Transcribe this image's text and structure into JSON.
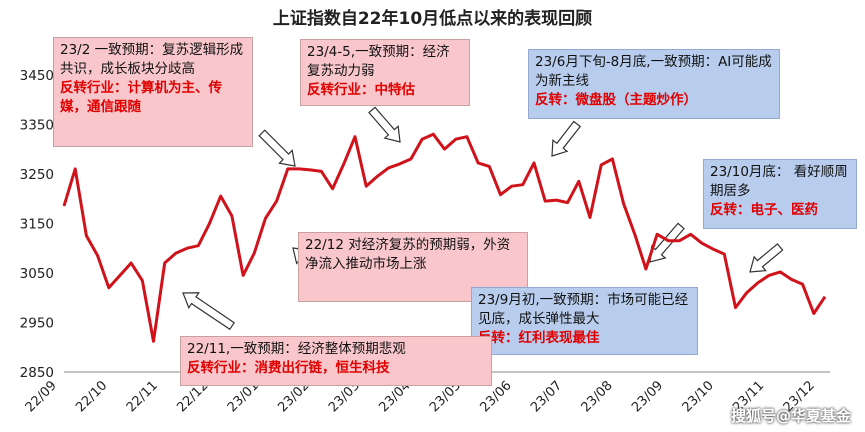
{
  "chart_data": {
    "type": "line",
    "title": "上证指数自22年10月低点以来的表现回顾",
    "ylim": [
      2850,
      3500
    ],
    "yticks": [
      2850,
      2950,
      3050,
      3150,
      3250,
      3350,
      3450
    ],
    "xticks": [
      "22/09",
      "22/10",
      "22/11",
      "22/12",
      "23/01",
      "23/02",
      "23/03",
      "23/04",
      "23/05",
      "23/06",
      "23/07",
      "23/08",
      "23/09",
      "23/10",
      "23/11",
      "23/12"
    ],
    "values": [
      3185,
      3260,
      3125,
      3085,
      3020,
      3045,
      3070,
      3035,
      2912,
      3070,
      3090,
      3100,
      3105,
      3150,
      3205,
      3165,
      3045,
      3090,
      3160,
      3195,
      3260,
      3260,
      3258,
      3255,
      3220,
      3270,
      3325,
      3225,
      3245,
      3262,
      3270,
      3280,
      3320,
      3330,
      3300,
      3320,
      3325,
      3272,
      3265,
      3208,
      3225,
      3228,
      3272,
      3195,
      3197,
      3192,
      3235,
      3162,
      3268,
      3280,
      3190,
      3128,
      3058,
      3128,
      3115,
      3115,
      3128,
      3110,
      3098,
      3088,
      2980,
      3010,
      3030,
      3045,
      3052,
      3037,
      3027,
      2968,
      3002
    ]
  },
  "annotations": [
    {
      "id": "a1",
      "text": "23/2 一致预期：复苏逻辑形成共识，成长板块分歧高",
      "highlight": "反转行业：计算机为主、传媒，通信跟随",
      "color": "pink"
    },
    {
      "id": "a2",
      "text": "23/4-5,一致预期：经济复苏动力弱",
      "highlight": "反转行业：中特估",
      "color": "pink"
    },
    {
      "id": "a3",
      "text": "23/6月下旬-8月底,一致预期：AI可能成为新主线",
      "highlight": "反转：微盘股（主题炒作）",
      "color": "blue"
    },
    {
      "id": "a4",
      "text": "23/10月底： 看好顺周期居多",
      "highlight": "反转：电子、医药",
      "color": "blue"
    },
    {
      "id": "a5",
      "text": "22/12 对经济复苏的预期弱，外资净流入推动市场上涨",
      "highlight": "",
      "color": "pink"
    },
    {
      "id": "a6",
      "text": "23/9月初,一致预期：市场可能已经见底，成长弹性最大",
      "highlight": "反转：红利表现最佳",
      "color": "blue"
    },
    {
      "id": "a7",
      "text": "22/11,一致预期：经济整体预期悲观",
      "highlight": "反转行业：消费出行链，恒生科技",
      "color": "pink"
    }
  ],
  "watermark": "搜狐号@华夏基金"
}
